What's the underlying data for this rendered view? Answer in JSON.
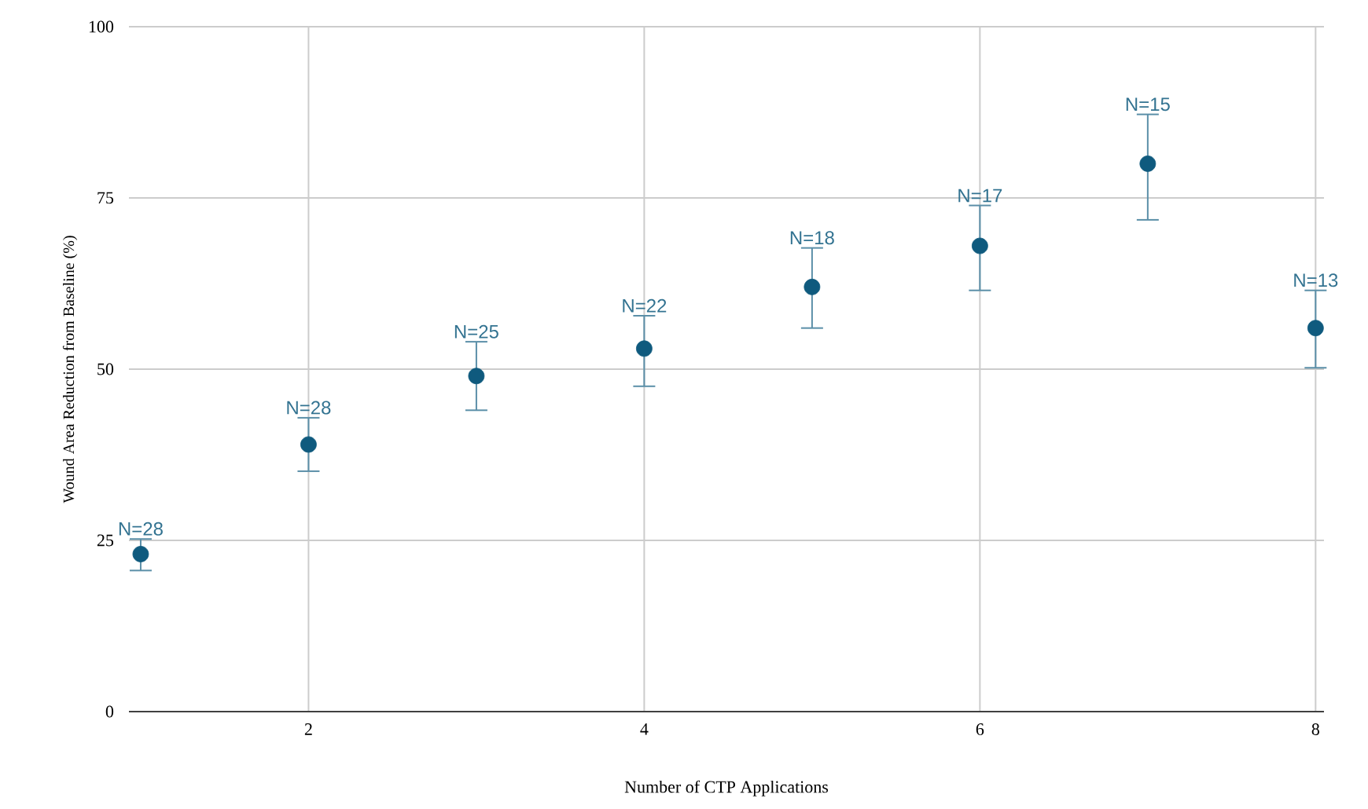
{
  "chart_data": {
    "type": "scatter",
    "xlabel": "Number of CTP Applications",
    "ylabel": "Wound Area Reduction from Baseline (%)",
    "x": [
      1,
      2,
      3,
      4,
      5,
      6,
      7,
      8
    ],
    "values": [
      23,
      39,
      49,
      53,
      62,
      68,
      80,
      56
    ],
    "errors": [
      [
        20.6,
        25.2
      ],
      [
        35.1,
        42.9
      ],
      [
        44,
        54
      ],
      [
        47.5,
        57.8
      ],
      [
        56,
        67.7
      ],
      [
        61.5,
        73.9
      ],
      [
        71.8,
        87.2
      ],
      [
        50.2,
        61.5
      ]
    ],
    "color": "#0f5a7e",
    "marker": "circle",
    "grid": true,
    "xlim": [
      0.93,
      8.05
    ],
    "ylim": [
      0,
      100
    ],
    "xticks": [
      2,
      4,
      6,
      8
    ],
    "yticks": [
      0,
      25,
      50,
      75,
      100
    ],
    "annotations": [
      {
        "text": "N=28",
        "x": 1,
        "y": 25.2
      },
      {
        "text": "N=28",
        "x": 2,
        "y": 42.9
      },
      {
        "text": "N=25",
        "x": 3,
        "y": 54
      },
      {
        "text": "N=22",
        "x": 4,
        "y": 57.8
      },
      {
        "text": "N=18",
        "x": 5,
        "y": 67.7
      },
      {
        "text": "N=17",
        "x": 6,
        "y": 73.9
      },
      {
        "text": "N=15",
        "x": 7,
        "y": 87.2
      },
      {
        "text": "N=13",
        "x": 8,
        "y": 61.5
      }
    ]
  }
}
